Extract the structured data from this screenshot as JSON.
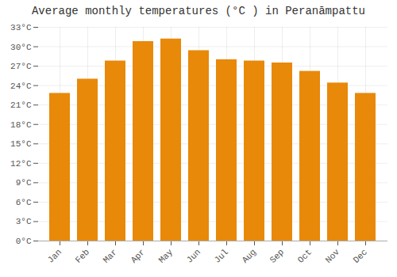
{
  "chart_data": {
    "type": "bar",
    "title": "Average monthly temperatures (°C ) in Peranāmpattu",
    "categories": [
      "Jan",
      "Feb",
      "Mar",
      "Apr",
      "May",
      "Jun",
      "Jul",
      "Aug",
      "Sep",
      "Oct",
      "Nov",
      "Dec"
    ],
    "values": [
      22.8,
      25.0,
      27.8,
      30.8,
      31.2,
      29.4,
      28.0,
      27.8,
      27.5,
      26.2,
      24.4,
      22.8
    ],
    "color": "#E8890A",
    "ylim": [
      0,
      33
    ],
    "yticks": [
      {
        "value": 0,
        "label": "0°C"
      },
      {
        "value": 3,
        "label": "3°C"
      },
      {
        "value": 6,
        "label": "6°C"
      },
      {
        "value": 9,
        "label": "9°C"
      },
      {
        "value": 12,
        "label": "12°C"
      },
      {
        "value": 15,
        "label": "15°C"
      },
      {
        "value": 18,
        "label": "18°C"
      },
      {
        "value": 21,
        "label": "21°C"
      },
      {
        "value": 24,
        "label": "24°C"
      },
      {
        "value": 27,
        "label": "27°C"
      },
      {
        "value": 30,
        "label": "30°C"
      },
      {
        "value": 33,
        "label": "33°C"
      }
    ],
    "grid": true
  }
}
